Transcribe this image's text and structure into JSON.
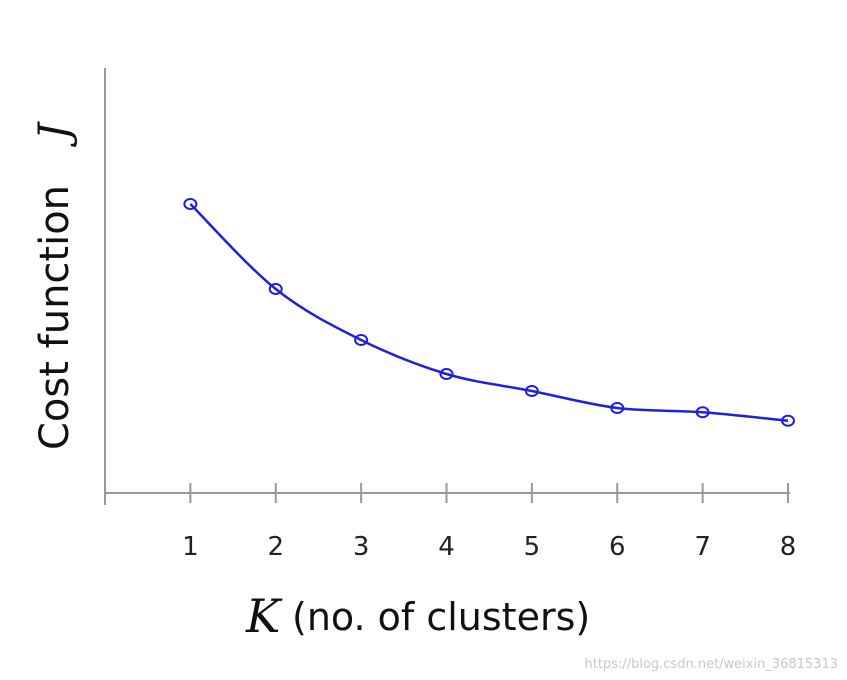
{
  "chart_data": {
    "type": "line",
    "ylabel": "Cost function",
    "ylabel_var": "J",
    "xlabel_var": "K",
    "xlabel": "(no. of clusters)",
    "watermark": "https://blog.csdn.net/weixin_36815313",
    "x": [
      1,
      2,
      3,
      4,
      5,
      6,
      7,
      8
    ],
    "series": [
      {
        "color": "#1f1fe0",
        "values": [
          68,
          48,
          36,
          28,
          24,
          20,
          19,
          17
        ]
      }
    ],
    "xlim": [
      0,
      8
    ],
    "xticks": [
      1,
      2,
      3,
      4,
      5,
      6,
      7,
      8
    ],
    "ylim": [
      0,
      100
    ]
  }
}
